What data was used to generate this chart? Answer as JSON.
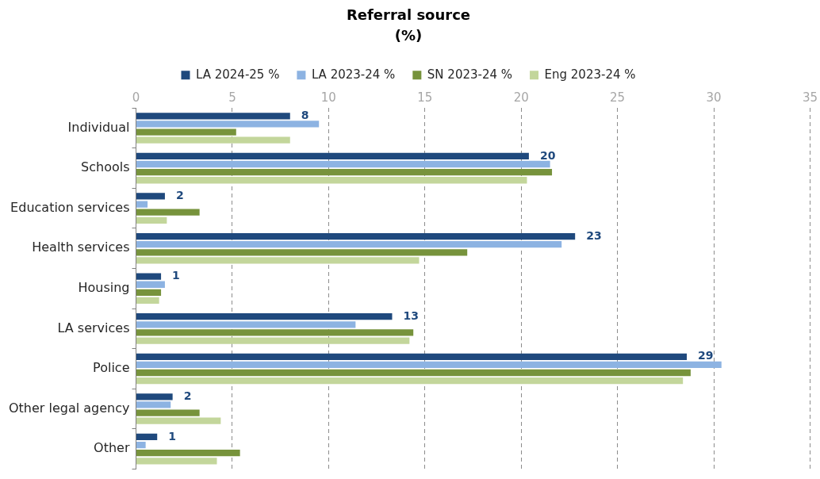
{
  "chart_data": {
    "type": "bar",
    "orientation": "horizontal",
    "title": "Referral source",
    "subtitle": "(%)",
    "categories": [
      "Individual",
      "Schools",
      "Education services",
      "Health services",
      "Housing",
      "LA services",
      "Police",
      "Other legal agency",
      "Other"
    ],
    "series": [
      {
        "name": "LA 2024-25 %",
        "color": "#1f497d",
        "values": [
          8.0,
          20.4,
          1.5,
          22.8,
          1.3,
          13.3,
          28.6,
          1.9,
          1.1
        ],
        "value_labels": [
          "8",
          "20",
          "2",
          "23",
          "1",
          "13",
          "29",
          "2",
          "1"
        ]
      },
      {
        "name": "LA 2023-24 %",
        "color": "#8db3e2",
        "values": [
          9.5,
          21.5,
          0.6,
          22.1,
          1.5,
          11.4,
          30.4,
          1.8,
          0.5
        ]
      },
      {
        "name": "SN 2023-24 %",
        "color": "#77933c",
        "values": [
          5.2,
          21.6,
          3.3,
          17.2,
          1.3,
          14.4,
          28.8,
          3.3,
          5.4
        ]
      },
      {
        "name": "Eng 2023-24 %",
        "color": "#c3d69b",
        "values": [
          8.0,
          20.3,
          1.6,
          14.7,
          1.2,
          14.2,
          28.4,
          4.4,
          4.2
        ]
      }
    ],
    "xlim": [
      0,
      35
    ],
    "xticks": [
      0,
      5,
      10,
      15,
      20,
      25,
      30,
      35
    ],
    "grid": "x",
    "legend": "top"
  }
}
